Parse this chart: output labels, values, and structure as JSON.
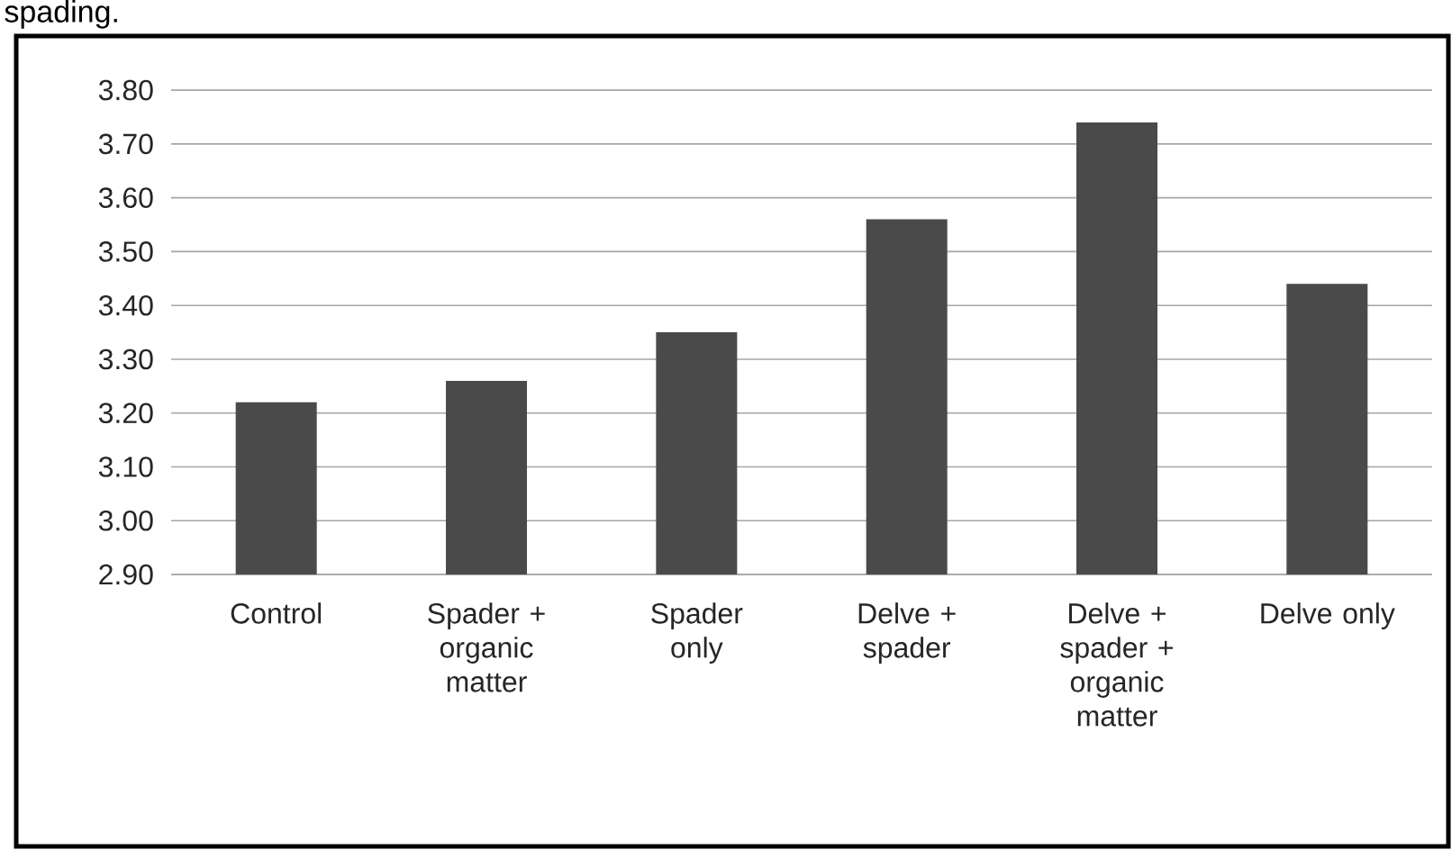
{
  "chart_data": {
    "type": "bar",
    "categories": [
      "Control",
      "Spader + organic matter",
      "Spader only",
      "Delve + spader",
      "Delve + spader + organic matter",
      "Delve only"
    ],
    "values": [
      3.22,
      3.26,
      3.35,
      3.56,
      3.74,
      3.44
    ],
    "color": "#4a4a4a",
    "ylim": [
      2.9,
      3.8
    ],
    "yticks": [
      {
        "value": 2.9,
        "label": "2.90"
      },
      {
        "value": 3.0,
        "label": "3.00"
      },
      {
        "value": 3.1,
        "label": "3.10"
      },
      {
        "value": 3.2,
        "label": "3.20"
      },
      {
        "value": 3.3,
        "label": "3.30"
      },
      {
        "value": 3.4,
        "label": "3.40"
      },
      {
        "value": 3.5,
        "label": "3.50"
      },
      {
        "value": 3.6,
        "label": "3.60"
      },
      {
        "value": 3.7,
        "label": "3.70"
      },
      {
        "value": 3.8,
        "label": "3.80"
      }
    ],
    "grid": "y",
    "annotations": [
      "spading."
    ]
  }
}
